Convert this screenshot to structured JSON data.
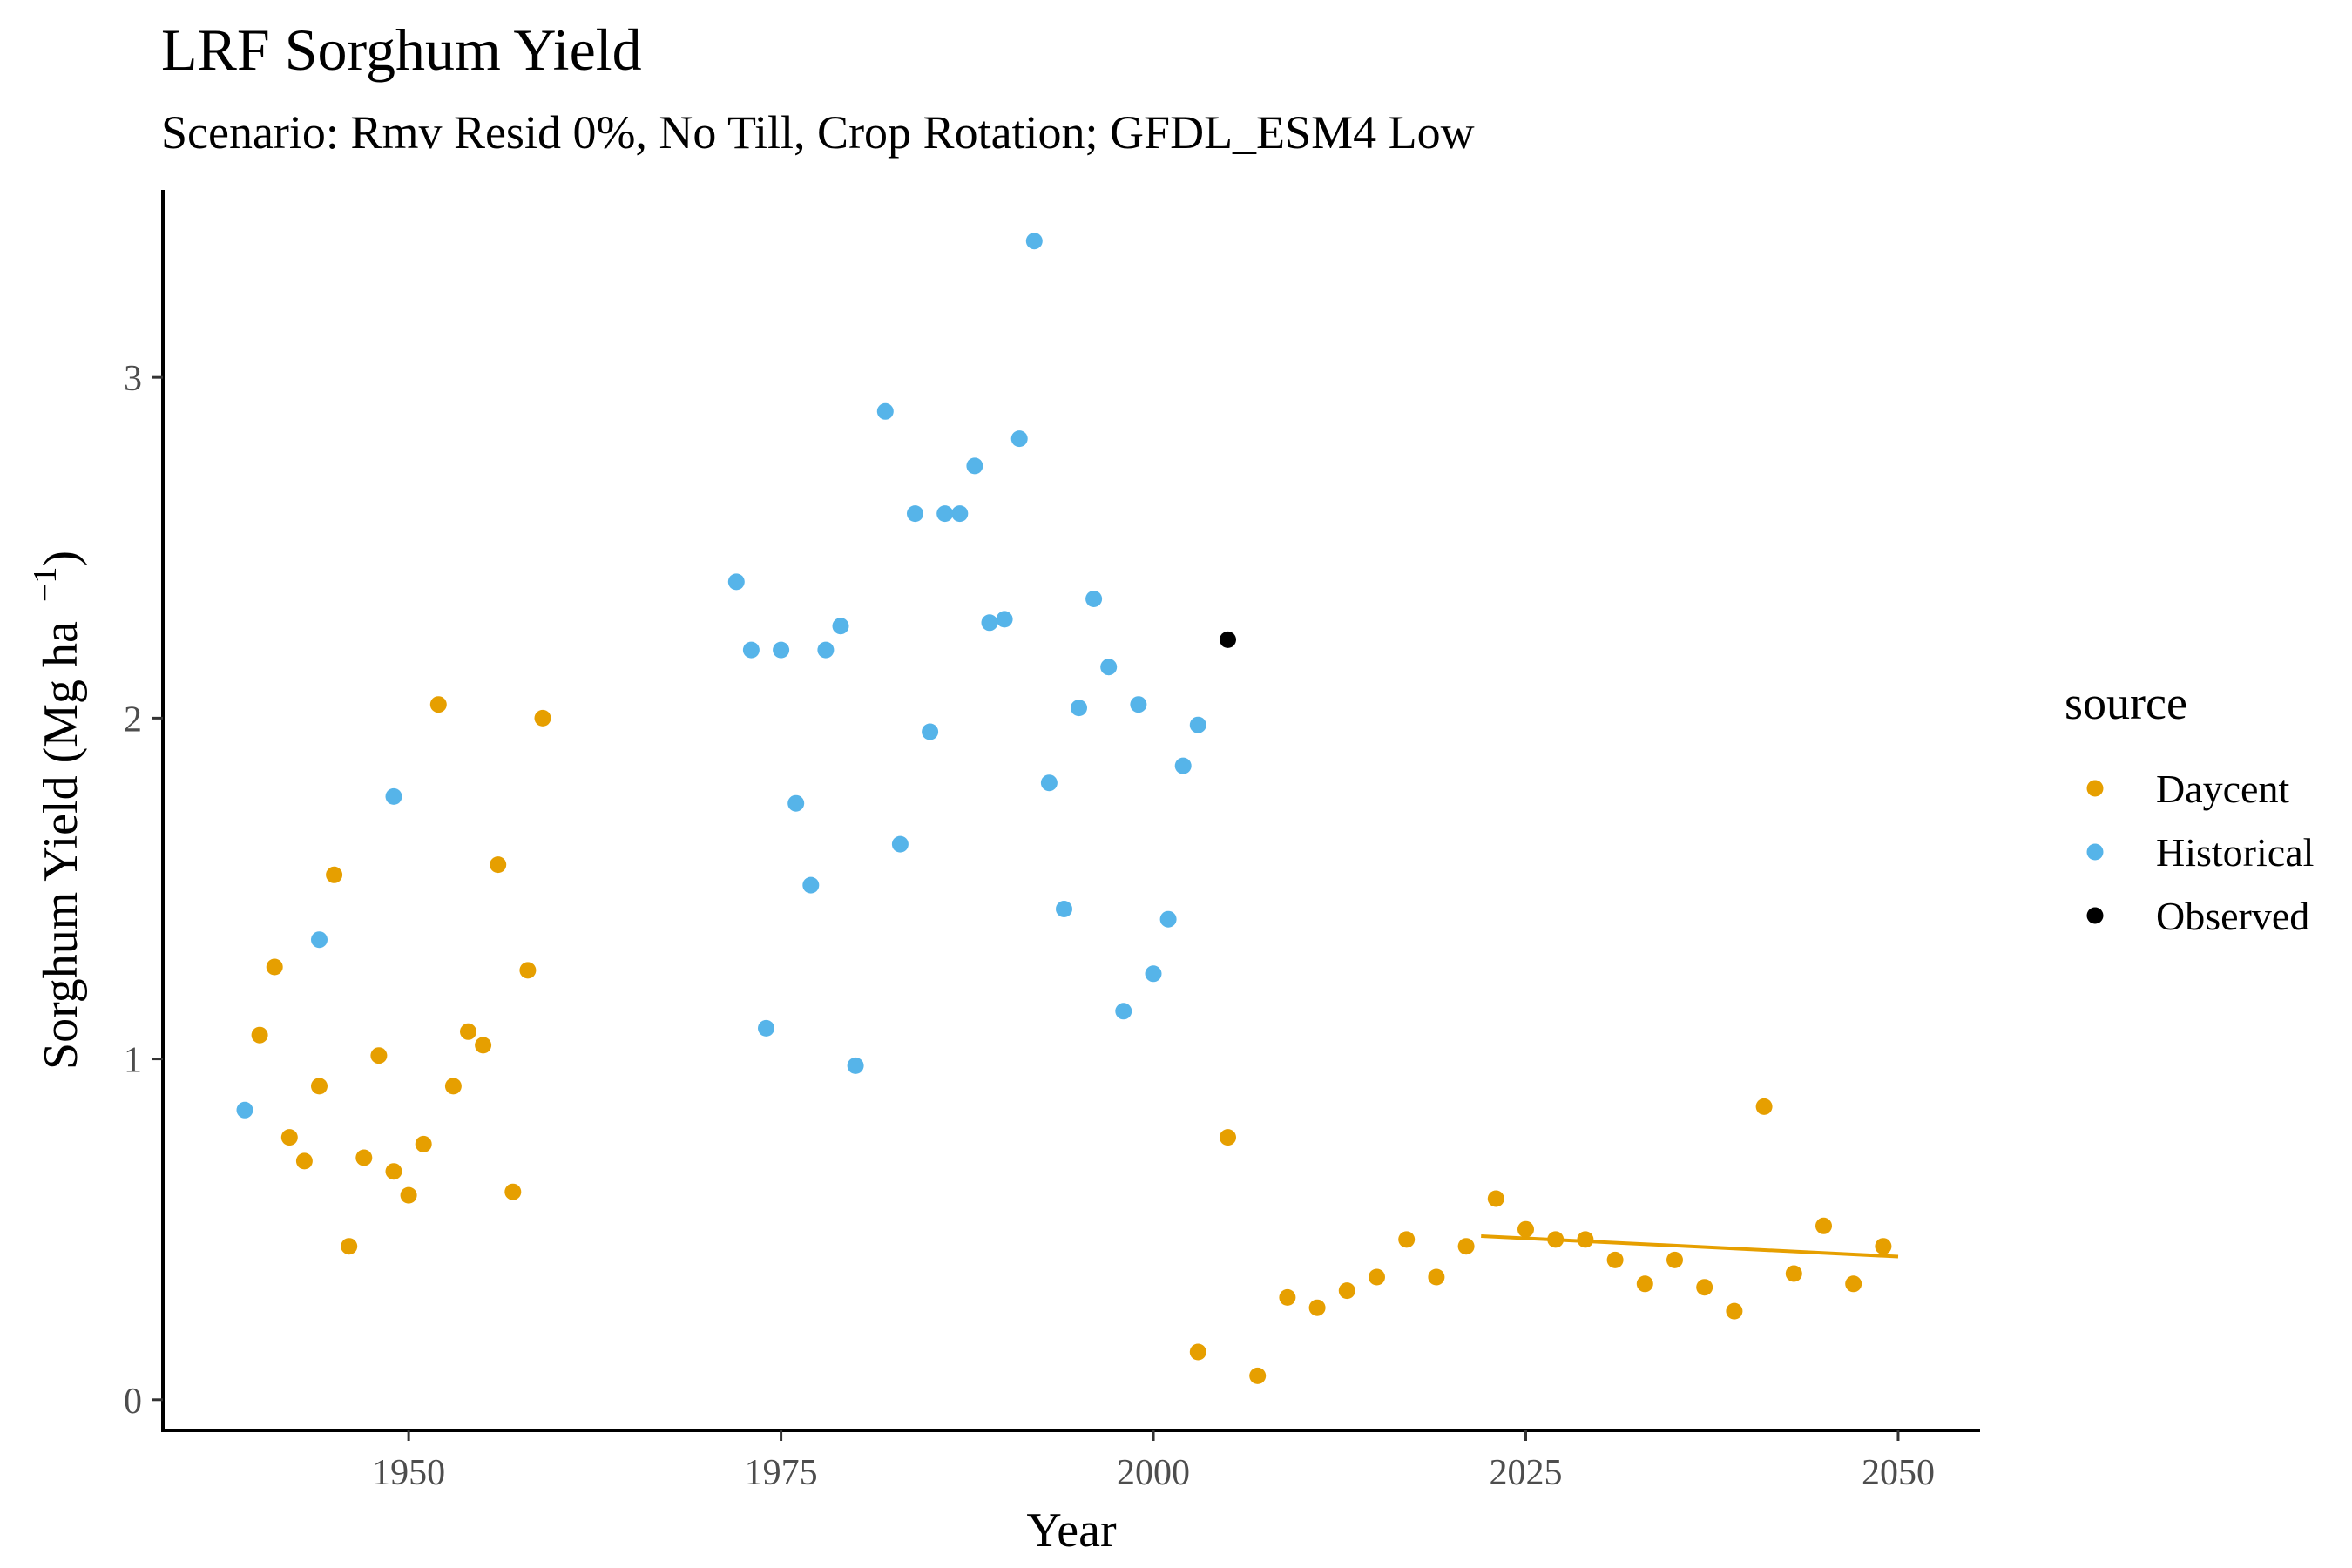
{
  "chart_data": {
    "type": "scatter",
    "title": "LRF Sorghum Yield",
    "subtitle": "Scenario: Rmv Resid 0%, No Till, Crop Rotation; GFDL_ESM4 Low",
    "xlabel": "Year",
    "ylabel": "Sorghum Yield (Mg ha",
    "ylabel_superscript": "−1",
    "ylabel_close": ")",
    "xlim": [
      1933.5,
      2055.5
    ],
    "ylim": [
      -0.09,
      3.55
    ],
    "x_ticks": [
      1950,
      1975,
      2000,
      2025,
      2050
    ],
    "y_ticks": [
      0,
      1,
      2,
      3
    ],
    "grid": false,
    "legend": {
      "title": "source",
      "position": "right"
    },
    "series": [
      {
        "name": "Daycent",
        "color": "#E69F00",
        "points": [
          [
            1940,
            1.07
          ],
          [
            1941,
            1.27
          ],
          [
            1942,
            0.77
          ],
          [
            1943,
            0.7
          ],
          [
            1944,
            0.92
          ],
          [
            1945,
            1.54
          ],
          [
            1946,
            0.45
          ],
          [
            1947,
            0.71
          ],
          [
            1948,
            1.01
          ],
          [
            1949,
            0.67
          ],
          [
            1950,
            0.6
          ],
          [
            1951,
            0.75
          ],
          [
            1952,
            2.04
          ],
          [
            1953,
            0.92
          ],
          [
            1954,
            1.08
          ],
          [
            1955,
            1.04
          ],
          [
            1956,
            1.57
          ],
          [
            1957,
            0.61
          ],
          [
            1958,
            1.26
          ],
          [
            1959,
            2.0
          ],
          [
            2003,
            0.14
          ],
          [
            2005,
            0.77
          ],
          [
            2007,
            0.07
          ],
          [
            2009,
            0.3
          ],
          [
            2011,
            0.27
          ],
          [
            2013,
            0.32
          ],
          [
            2015,
            0.36
          ],
          [
            2017,
            0.47
          ],
          [
            2019,
            0.36
          ],
          [
            2021,
            0.45
          ],
          [
            2023,
            0.59
          ],
          [
            2025,
            0.5
          ],
          [
            2027,
            0.47
          ],
          [
            2029,
            0.47
          ],
          [
            2031,
            0.41
          ],
          [
            2033,
            0.34
          ],
          [
            2035,
            0.41
          ],
          [
            2037,
            0.33
          ],
          [
            2039,
            0.26
          ],
          [
            2041,
            0.86
          ],
          [
            2043,
            0.37
          ],
          [
            2045,
            0.51
          ],
          [
            2047,
            0.34
          ],
          [
            2049,
            0.45
          ]
        ]
      },
      {
        "name": "Historical",
        "color": "#56B4E9",
        "points": [
          [
            1939,
            0.85
          ],
          [
            1944,
            1.35
          ],
          [
            1949,
            1.77
          ],
          [
            1972,
            2.4
          ],
          [
            1973,
            2.2
          ],
          [
            1974,
            1.09
          ],
          [
            1975,
            2.2
          ],
          [
            1976,
            1.75
          ],
          [
            1977,
            1.51
          ],
          [
            1978,
            2.2
          ],
          [
            1979,
            2.27
          ],
          [
            1980,
            0.98
          ],
          [
            1982,
            2.9
          ],
          [
            1983,
            1.63
          ],
          [
            1984,
            2.6
          ],
          [
            1985,
            1.96
          ],
          [
            1986,
            2.6
          ],
          [
            1987,
            2.6
          ],
          [
            1988,
            2.74
          ],
          [
            1989,
            2.28
          ],
          [
            1990,
            2.29
          ],
          [
            1991,
            2.82
          ],
          [
            1992,
            3.4
          ],
          [
            1993,
            1.81
          ],
          [
            1994,
            1.44
          ],
          [
            1995,
            2.03
          ],
          [
            1996,
            2.35
          ],
          [
            1997,
            2.15
          ],
          [
            1998,
            1.14
          ],
          [
            1999,
            2.04
          ],
          [
            2000,
            1.25
          ],
          [
            2001,
            1.41
          ],
          [
            2002,
            1.86
          ],
          [
            2003,
            1.98
          ]
        ]
      },
      {
        "name": "Observed",
        "color": "#000000",
        "points": [
          [
            2005,
            2.23
          ]
        ]
      }
    ],
    "trend_line": {
      "series": "Daycent",
      "color": "#E69F00",
      "from": [
        2022,
        0.48
      ],
      "to": [
        2050,
        0.42
      ]
    }
  }
}
